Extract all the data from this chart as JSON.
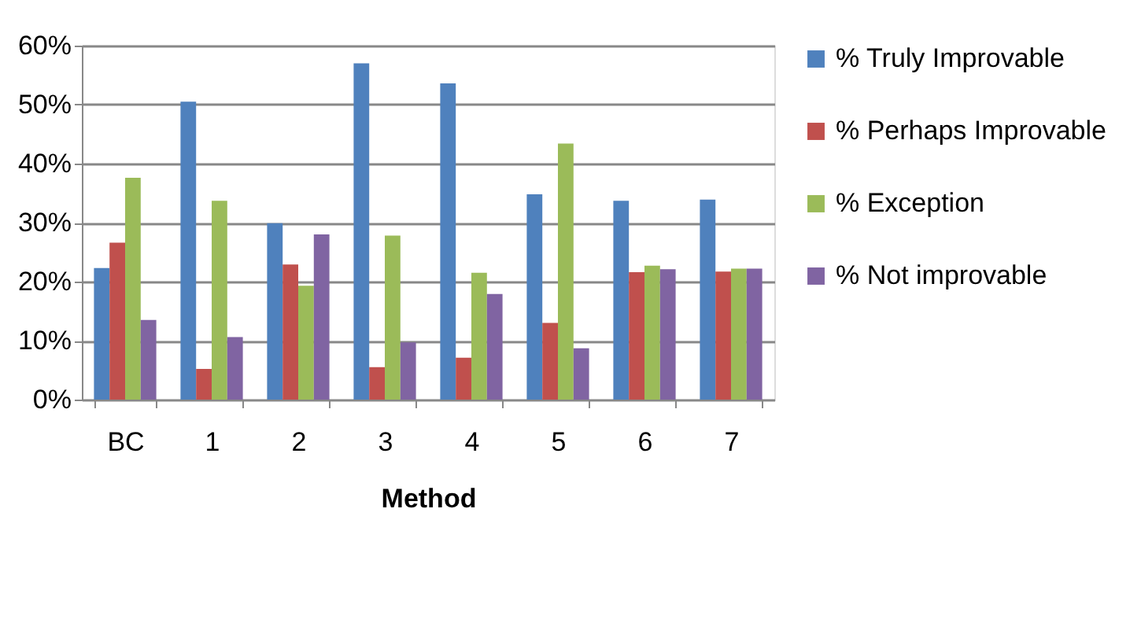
{
  "chart_data": {
    "type": "bar",
    "xlabel": "Method",
    "categories": [
      "BC",
      "1",
      "2",
      "3",
      "4",
      "5",
      "6",
      "7"
    ],
    "series": [
      {
        "name": "% Truly Improvable",
        "color": "#4f81bd",
        "values": [
          22.3,
          50.5,
          29.9,
          57.0,
          53.6,
          34.8,
          33.7,
          33.9
        ]
      },
      {
        "name": "% Perhaps Improvable",
        "color": "#c0504d",
        "values": [
          26.6,
          5.2,
          22.9,
          5.5,
          7.1,
          13.0,
          21.6,
          21.7
        ]
      },
      {
        "name": "% Exception",
        "color": "#9bbb59",
        "values": [
          37.6,
          33.7,
          19.3,
          27.8,
          21.5,
          43.4,
          22.7,
          22.2
        ]
      },
      {
        "name": "% Not improvable",
        "color": "#8064a2",
        "values": [
          13.5,
          10.6,
          28.0,
          9.7,
          17.9,
          8.7,
          22.1,
          22.2
        ]
      }
    ],
    "ylim": [
      0,
      60
    ],
    "yticks": [
      {
        "value": 0,
        "label": "0%"
      },
      {
        "value": 10,
        "label": "10%"
      },
      {
        "value": 20,
        "label": "20%"
      },
      {
        "value": 30,
        "label": "30%"
      },
      {
        "value": 40,
        "label": "40%"
      },
      {
        "value": 50,
        "label": "50%"
      },
      {
        "value": 60,
        "label": "60%"
      }
    ],
    "grid": "y",
    "legend": "right"
  }
}
